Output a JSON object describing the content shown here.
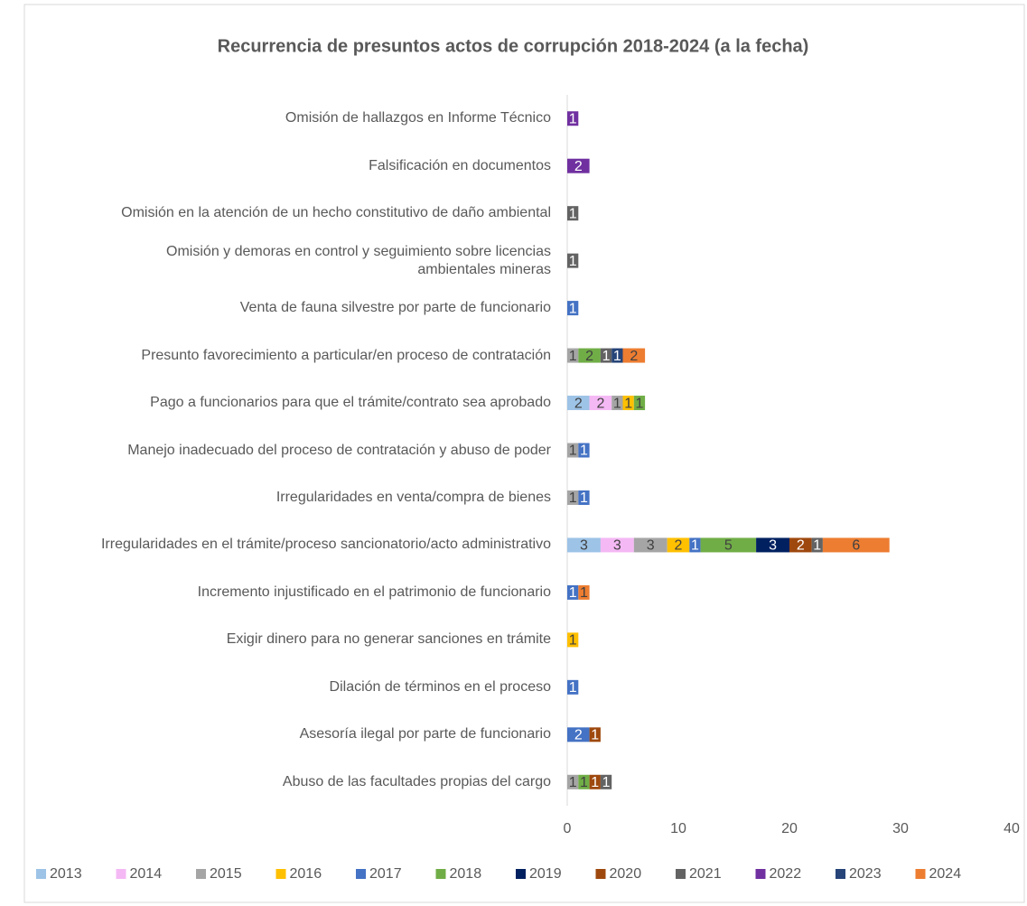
{
  "chart_data": {
    "type": "stacked_barh",
    "title": "Recurrencia de presuntos actos de corrupción 2018-2024 (a la fecha)",
    "categories": [
      "Omisión de hallazgos en Informe Técnico",
      "Falsificación en documentos",
      "Omisión en la atención de un hecho constitutivo de daño ambiental",
      "Omisión y demoras en control y seguimiento sobre licencias ambientales mineras",
      "Venta de fauna silvestre por parte de funcionario",
      "Presunto favorecimiento a particular/en proceso de contratación",
      "Pago a funcionarios para que el trámite/contrato sea aprobado",
      "Manejo inadecuado del proceso de contratación y abuso de poder",
      "Irregularidades en venta/compra de bienes",
      "Irregularidades en el trámite/proceso sancionatorio/acto administrativo",
      "Incremento injustificado en el patrimonio de funcionario",
      "Exigir dinero para no generar sanciones en trámite",
      "Dilación de términos en el proceso",
      "Asesoría ilegal por parte de funcionario",
      "Abuso de las facultades propias del cargo"
    ],
    "series": [
      {
        "name": "2013",
        "color": "#9dc3e6",
        "values": [
          0,
          0,
          0,
          0,
          0,
          0,
          2,
          0,
          0,
          3,
          0,
          0,
          0,
          0,
          0
        ]
      },
      {
        "name": "2014",
        "color": "#f4b8f4",
        "values": [
          0,
          0,
          0,
          0,
          0,
          0,
          2,
          0,
          0,
          3,
          0,
          0,
          0,
          0,
          0
        ]
      },
      {
        "name": "2015",
        "color": "#a5a5a5",
        "values": [
          0,
          0,
          0,
          0,
          0,
          1,
          1,
          1,
          1,
          3,
          0,
          0,
          0,
          0,
          1
        ]
      },
      {
        "name": "2016",
        "color": "#ffc000",
        "values": [
          0,
          0,
          0,
          0,
          0,
          0,
          1,
          0,
          0,
          2,
          0,
          1,
          0,
          0,
          0
        ]
      },
      {
        "name": "2017",
        "color": "#4472c4",
        "values": [
          0,
          0,
          0,
          0,
          1,
          0,
          0,
          1,
          1,
          1,
          1,
          0,
          1,
          2,
          0
        ]
      },
      {
        "name": "2018",
        "color": "#70ad47",
        "values": [
          0,
          0,
          0,
          0,
          0,
          2,
          1,
          0,
          0,
          5,
          0,
          0,
          0,
          0,
          1
        ]
      },
      {
        "name": "2019",
        "color": "#002060",
        "values": [
          0,
          0,
          0,
          0,
          0,
          0,
          0,
          0,
          0,
          3,
          0,
          0,
          0,
          0,
          0
        ]
      },
      {
        "name": "2020",
        "color": "#9e480e",
        "values": [
          0,
          0,
          0,
          0,
          0,
          0,
          0,
          0,
          0,
          2,
          0,
          0,
          0,
          1,
          1
        ]
      },
      {
        "name": "2021",
        "color": "#636363",
        "values": [
          0,
          0,
          1,
          1,
          0,
          1,
          0,
          0,
          0,
          1,
          0,
          0,
          0,
          0,
          1
        ]
      },
      {
        "name": "2022",
        "color": "#7030a0",
        "values": [
          1,
          2,
          0,
          0,
          0,
          0,
          0,
          0,
          0,
          0,
          0,
          0,
          0,
          0,
          0
        ]
      },
      {
        "name": "2023",
        "color": "#264478",
        "values": [
          0,
          0,
          0,
          0,
          0,
          1,
          0,
          0,
          0,
          0,
          0,
          0,
          0,
          0,
          0
        ]
      },
      {
        "name": "2024",
        "color": "#ed7d31",
        "values": [
          0,
          0,
          0,
          0,
          0,
          2,
          0,
          0,
          0,
          6,
          1,
          0,
          0,
          0,
          0
        ]
      }
    ],
    "xlim": [
      0,
      40
    ],
    "xticks": [
      0,
      10,
      20,
      30,
      40
    ],
    "legend": "bottom"
  }
}
